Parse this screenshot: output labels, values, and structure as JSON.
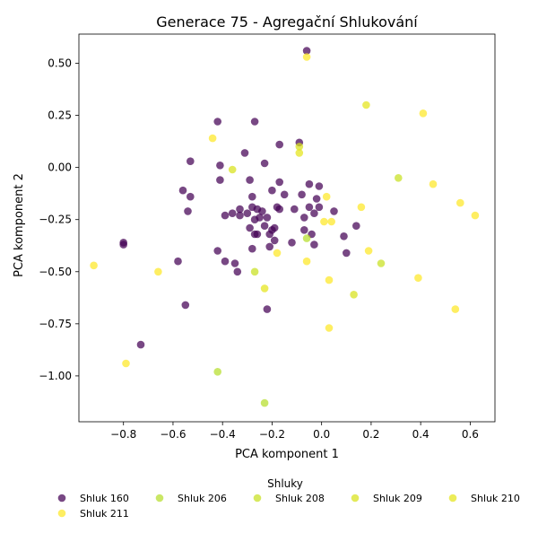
{
  "chart_data": {
    "type": "scatter",
    "title": "Generace 75 - Agregační Shlukování",
    "xlabel": "PCA komponent 1",
    "ylabel": "PCA komponent 2",
    "xlim": [
      -0.98,
      0.7
    ],
    "ylim": [
      -1.22,
      0.64
    ],
    "x_ticks": [
      -0.8,
      -0.6,
      -0.4,
      -0.2,
      0.0,
      0.2,
      0.4,
      0.6
    ],
    "x_tick_labels": [
      "−0.8",
      "−0.6",
      "−0.4",
      "−0.2",
      "0.0",
      "0.2",
      "0.4",
      "0.6"
    ],
    "y_ticks": [
      0.5,
      0.25,
      0.0,
      -0.25,
      -0.5,
      -0.75,
      -1.0
    ],
    "y_tick_labels": [
      "0.50",
      "0.25",
      "0.00",
      "−0.25",
      "−0.50",
      "−0.75",
      "−1.00"
    ],
    "grid": false,
    "legend": {
      "title": "Shluky",
      "placement": "below"
    },
    "series": [
      {
        "name": "Shluk 160",
        "color": "#440154",
        "points": [
          [
            -0.06,
            0.56
          ],
          [
            -0.42,
            0.22
          ],
          [
            -0.27,
            0.22
          ],
          [
            -0.09,
            0.12
          ],
          [
            -0.17,
            0.11
          ],
          [
            -0.53,
            0.03
          ],
          [
            -0.31,
            0.07
          ],
          [
            -0.23,
            0.02
          ],
          [
            -0.41,
            0.01
          ],
          [
            -0.41,
            -0.06
          ],
          [
            -0.29,
            -0.06
          ],
          [
            -0.17,
            -0.07
          ],
          [
            -0.05,
            -0.08
          ],
          [
            -0.01,
            -0.09
          ],
          [
            -0.56,
            -0.11
          ],
          [
            -0.2,
            -0.11
          ],
          [
            -0.53,
            -0.14
          ],
          [
            -0.28,
            -0.14
          ],
          [
            -0.15,
            -0.13
          ],
          [
            -0.08,
            -0.13
          ],
          [
            -0.02,
            -0.15
          ],
          [
            -0.28,
            -0.19
          ],
          [
            -0.26,
            -0.2
          ],
          [
            -0.18,
            -0.19
          ],
          [
            -0.17,
            -0.2
          ],
          [
            -0.11,
            -0.2
          ],
          [
            -0.05,
            -0.19
          ],
          [
            -0.01,
            -0.19
          ],
          [
            0.05,
            -0.21
          ],
          [
            -0.54,
            -0.21
          ],
          [
            -0.33,
            -0.2
          ],
          [
            -0.24,
            -0.21
          ],
          [
            -0.03,
            -0.22
          ],
          [
            -0.39,
            -0.23
          ],
          [
            -0.36,
            -0.22
          ],
          [
            -0.33,
            -0.23
          ],
          [
            -0.3,
            -0.22
          ],
          [
            -0.25,
            -0.24
          ],
          [
            -0.22,
            -0.24
          ],
          [
            -0.07,
            -0.24
          ],
          [
            -0.27,
            -0.25
          ],
          [
            -0.23,
            -0.28
          ],
          [
            -0.2,
            -0.3
          ],
          [
            -0.19,
            -0.29
          ],
          [
            0.14,
            -0.28
          ],
          [
            -0.29,
            -0.29
          ],
          [
            -0.26,
            -0.32
          ],
          [
            -0.21,
            -0.32
          ],
          [
            -0.07,
            -0.3
          ],
          [
            -0.04,
            -0.32
          ],
          [
            0.09,
            -0.33
          ],
          [
            -0.27,
            -0.32
          ],
          [
            -0.19,
            -0.35
          ],
          [
            -0.12,
            -0.36
          ],
          [
            -0.03,
            -0.37
          ],
          [
            -0.8,
            -0.36
          ],
          [
            -0.8,
            -0.37
          ],
          [
            -0.21,
            -0.38
          ],
          [
            -0.28,
            -0.39
          ],
          [
            -0.42,
            -0.4
          ],
          [
            0.1,
            -0.41
          ],
          [
            -0.58,
            -0.45
          ],
          [
            -0.39,
            -0.45
          ],
          [
            -0.35,
            -0.46
          ],
          [
            -0.34,
            -0.5
          ],
          [
            -0.55,
            -0.66
          ],
          [
            -0.22,
            -0.68
          ],
          [
            -0.73,
            -0.85
          ]
        ]
      },
      {
        "name": "Shluk 206",
        "color": "#b5de2b",
        "points": [
          [
            -0.06,
            -0.34
          ],
          [
            -0.42,
            -0.98
          ],
          [
            -0.23,
            -1.13
          ]
        ]
      },
      {
        "name": "Shluk 208",
        "color": "#c8e020",
        "points": [
          [
            -0.27,
            -0.5
          ],
          [
            0.31,
            -0.05
          ],
          [
            0.24,
            -0.46
          ]
        ]
      },
      {
        "name": "Shluk 209",
        "color": "#d8e219",
        "points": [
          [
            -0.09,
            0.1
          ],
          [
            -0.36,
            -0.01
          ],
          [
            0.13,
            -0.61
          ]
        ]
      },
      {
        "name": "Shluk 210",
        "color": "#e5e419",
        "points": [
          [
            -0.09,
            0.07
          ],
          [
            0.18,
            0.3
          ],
          [
            -0.23,
            -0.58
          ]
        ]
      },
      {
        "name": "Shluk 211",
        "color": "#fde725",
        "points": [
          [
            -0.06,
            0.53
          ],
          [
            0.41,
            0.26
          ],
          [
            -0.44,
            0.14
          ],
          [
            0.45,
            -0.08
          ],
          [
            0.02,
            -0.14
          ],
          [
            0.56,
            -0.17
          ],
          [
            0.16,
            -0.19
          ],
          [
            0.62,
            -0.23
          ],
          [
            0.01,
            -0.26
          ],
          [
            0.04,
            -0.26
          ],
          [
            0.19,
            -0.4
          ],
          [
            -0.18,
            -0.41
          ],
          [
            -0.06,
            -0.45
          ],
          [
            -0.92,
            -0.47
          ],
          [
            -0.66,
            -0.5
          ],
          [
            0.39,
            -0.53
          ],
          [
            0.03,
            -0.54
          ],
          [
            0.54,
            -0.68
          ],
          [
            0.03,
            -0.77
          ],
          [
            -0.79,
            -0.94
          ]
        ]
      }
    ]
  }
}
